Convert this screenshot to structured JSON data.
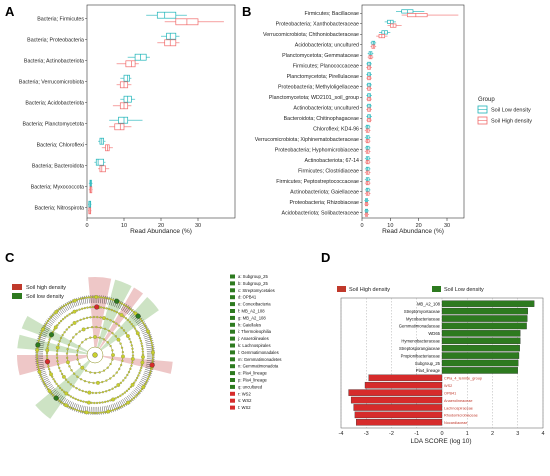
{
  "colors": {
    "low": "#1db3b8",
    "high": "#f06a6a",
    "green": "#2d7a1f",
    "red": "#d62b2b",
    "yellow": "#c8cf2e"
  },
  "panels": {
    "a": "A",
    "b": "B",
    "c": "C",
    "d": "D"
  },
  "chart_data": [
    {
      "type": "box",
      "xlabel": "Read Abundance (%)",
      "xlim": [
        0,
        40
      ],
      "xticks": [
        0,
        10,
        20,
        30
      ],
      "categories": [
        "Bacteria; Firmicutes",
        "Bacteria; Proteobacteria",
        "Bacteria; Actinobacteriota",
        "Bacteria; Verrucomicrobiota",
        "Bacteria; Acidobacteriota",
        "Bacteria; Planctomycetota",
        "Bacteria; Chloroflexi",
        "Bacteria; Bacteroidota",
        "Bacteria; Myxococcota",
        "Bacteria; Nitrospirota"
      ],
      "low": [
        [
          16,
          19,
          21,
          24,
          27
        ],
        [
          20,
          21.5,
          22.5,
          24,
          25
        ],
        [
          11,
          13,
          14.5,
          16,
          17
        ],
        [
          9,
          10,
          11,
          11.5,
          12
        ],
        [
          9,
          10,
          11,
          12,
          13
        ],
        [
          6,
          8.5,
          10,
          11,
          15
        ],
        [
          3,
          3.5,
          4,
          4.5,
          5
        ],
        [
          2,
          2.5,
          3,
          4.5,
          5
        ],
        [
          0.5,
          0.8,
          1,
          1.2,
          1.5
        ],
        [
          0.3,
          0.5,
          0.8,
          1,
          1.2
        ]
      ],
      "high": [
        [
          21,
          24,
          27,
          30,
          37
        ],
        [
          19,
          21,
          22.5,
          24,
          25
        ],
        [
          8,
          10.5,
          12,
          13,
          14
        ],
        [
          8,
          9,
          10,
          11,
          12
        ],
        [
          7,
          9,
          10,
          11,
          12
        ],
        [
          6,
          7.5,
          9,
          10,
          12
        ],
        [
          4,
          5,
          5.5,
          6,
          7
        ],
        [
          3,
          3.5,
          4,
          5,
          6
        ],
        [
          0.5,
          0.8,
          1,
          1.3,
          1.5
        ],
        [
          0.3,
          0.5,
          0.8,
          1,
          1.2
        ]
      ]
    },
    {
      "type": "box",
      "xlabel": "Read Abundance (%)",
      "xlim": [
        0,
        36
      ],
      "xticks": [
        0,
        10,
        20,
        30
      ],
      "categories": [
        "Firmicutes; Bacillaceae",
        "Proteobacteria; Xanthobacteraceae",
        "Verrucomicrobiota; Chthoniobacteraceae",
        "Acidobacteriota; uncultured",
        "Planctomycetota; Gemmataceae",
        "Firmicutes; Planococcaceae",
        "Planctomycetota; Pirellulaceae",
        "Proteobacteria; Methyloligellaceae",
        "Planctomycetota; WD2101_soil_group",
        "Actinobacteriota; uncultured",
        "Bacteroidota; Chitinophagaceae",
        "Chloroflexi; KD4-96",
        "Verrucomicrobiota; Xiphinematobacteraceae",
        "Proteobacteria; Hyphomicrobiaceae",
        "Actinobacteriota; 67-14",
        "Firmicutes; Clostridiaceae",
        "Firmicutes; Peptostreptococcaceae",
        "Actinobacteriota; Gaiellaceae",
        "Proteobacteria; Rhizobiaceae",
        "Acidobacteriota; Solibacteraceae"
      ],
      "low": [
        [
          12,
          14,
          16,
          18,
          22
        ],
        [
          8,
          9,
          10,
          11,
          12
        ],
        [
          6,
          7,
          8,
          9,
          10
        ],
        [
          3,
          3.5,
          4,
          4.5,
          5
        ],
        [
          2,
          2.5,
          3,
          3.5,
          4
        ],
        [
          1.5,
          2,
          2.5,
          3,
          3.5
        ],
        [
          1.5,
          2,
          2.5,
          3,
          3.5
        ],
        [
          1.5,
          2,
          2.5,
          3,
          3.5
        ],
        [
          1.5,
          2,
          2.5,
          3,
          3.5
        ],
        [
          1.5,
          2,
          2.5,
          3,
          3.5
        ],
        [
          1.5,
          2,
          2.5,
          3,
          3.5
        ],
        [
          1,
          1.5,
          2,
          2.5,
          3
        ],
        [
          1,
          1.5,
          2,
          2.5,
          3
        ],
        [
          1,
          1.5,
          2,
          2.5,
          3
        ],
        [
          1,
          1.5,
          2,
          2.5,
          3
        ],
        [
          1,
          1.5,
          2,
          2.5,
          3
        ],
        [
          1,
          1.5,
          2,
          2.5,
          3
        ],
        [
          1,
          1.5,
          2,
          2.5,
          3
        ],
        [
          0.8,
          1.2,
          1.6,
          2,
          2.5
        ],
        [
          0.8,
          1.2,
          1.6,
          2,
          2.5
        ]
      ],
      "high": [
        [
          14,
          16,
          19,
          23,
          34
        ],
        [
          9,
          10,
          11,
          12,
          14
        ],
        [
          5,
          6,
          7,
          8,
          9
        ],
        [
          3,
          3.5,
          4,
          4.5,
          5
        ],
        [
          2,
          2.5,
          3,
          3.5,
          4
        ],
        [
          1.5,
          2,
          2.5,
          3,
          3.5
        ],
        [
          1.5,
          2,
          2.5,
          3,
          3.5
        ],
        [
          1.5,
          2,
          2.5,
          3,
          3.5
        ],
        [
          1.5,
          2,
          2.5,
          3,
          3.5
        ],
        [
          1.5,
          2,
          2.5,
          3,
          3.5
        ],
        [
          1.5,
          2,
          2.5,
          3,
          3.5
        ],
        [
          1,
          1.5,
          2,
          2.5,
          3
        ],
        [
          1,
          1.5,
          2,
          2.5,
          3
        ],
        [
          1,
          1.5,
          2,
          2.5,
          3
        ],
        [
          1,
          1.5,
          2,
          2.5,
          3
        ],
        [
          1,
          1.5,
          2,
          2.5,
          3
        ],
        [
          1,
          1.5,
          2,
          2.5,
          3
        ],
        [
          1,
          1.5,
          2,
          2.5,
          3
        ],
        [
          0.8,
          1.2,
          1.6,
          2,
          2.5
        ],
        [
          0.8,
          1.2,
          1.6,
          2,
          2.5
        ]
      ],
      "legend": {
        "title": "Group",
        "low": "Soil Low density",
        "high": "Soil High density"
      }
    },
    {
      "type": "cladogram",
      "legend": {
        "high": "Soil high density",
        "low": "Soil low density"
      },
      "clade_labels": [
        "a: Subgroup_25",
        "b: Subgroup_25",
        "c: Streptomycetales",
        "d: OPB41",
        "e: Conexibacteria",
        "f: MB_A2_108",
        "g: MB_A2_108",
        "h: Gaiellales",
        "i: Thermoleophilia",
        "j: Anaerolineales",
        "k: Lachnospirales",
        "l: Gemmatimonadales",
        "m: Gemmatimonadetes",
        "n: Gemmatimonadota",
        "o: Pla4_lineage",
        "p: Pla4_lineage",
        "q: uncultured",
        "r: WS2",
        "s: WS2",
        "t: WS2"
      ],
      "clade_group": [
        "low",
        "low",
        "low",
        "low",
        "low",
        "low",
        "low",
        "low",
        "low",
        "low",
        "low",
        "low",
        "low",
        "low",
        "low",
        "low",
        "low",
        "high",
        "high",
        "high"
      ]
    },
    {
      "type": "bar",
      "xlabel": "LDA SCORE (log 10)",
      "xlim": [
        -4,
        4
      ],
      "xticks": [
        -4,
        -3,
        -2,
        -1,
        0,
        1,
        2,
        3,
        4
      ],
      "legend": {
        "high": "Soil High density",
        "low": "Soil Low density"
      },
      "categories": [
        "MB_A2_108",
        "Streptomycetaceae",
        "Mycobacteriaceae",
        "Gemmatimonadaceae",
        "WD65",
        "Hymenobacteraceae",
        "Streptosporangiaceae",
        "Propionibacteriaceae",
        "Subgroup_25",
        "Pla4_lineage",
        "CPla_4_termite_group",
        "WS2",
        "OPB41",
        "Anaerolineaceae",
        "Lachnospiraceae",
        "Rhodomicrobiaceae",
        "Nocardiaceae"
      ],
      "values": [
        3.65,
        3.4,
        3.38,
        3.35,
        3.1,
        3.1,
        3.08,
        3.05,
        3.02,
        3.0,
        -2.9,
        -3.05,
        -3.7,
        -3.6,
        -3.5,
        -3.45,
        -3.4
      ],
      "groups": [
        "low",
        "low",
        "low",
        "low",
        "low",
        "low",
        "low",
        "low",
        "low",
        "low",
        "high",
        "high",
        "high",
        "high",
        "high",
        "high",
        "high"
      ]
    }
  ]
}
